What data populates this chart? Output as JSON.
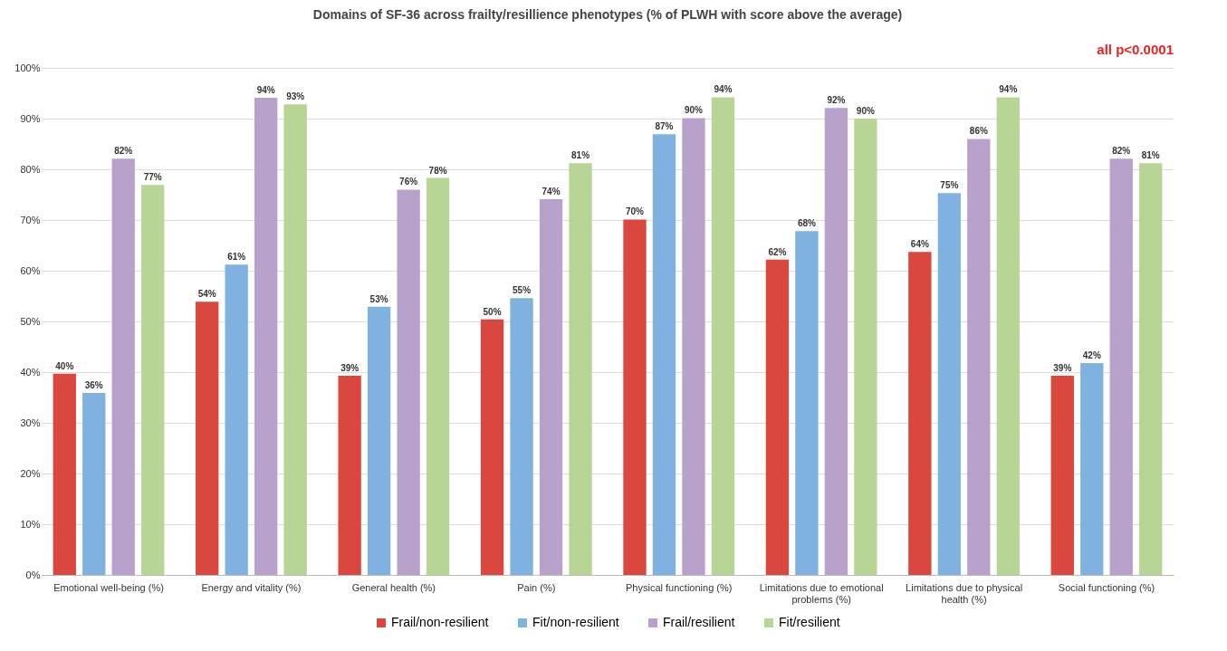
{
  "chart_data": {
    "type": "bar",
    "title": "Domains of SF-36 across frailty/resillience phenotypes (% of PLWH with score above the average)",
    "annotations": [
      "all p<0.0001"
    ],
    "categories": [
      "Emotional well-being (%)",
      "Energy and vitality (%)",
      "General health (%)",
      "Pain (%)",
      "Physical functioning (%)",
      "Limitations due to emotional problems (%)",
      "Limitations due to physical health (%)",
      "Social functioning (%)"
    ],
    "series": [
      {
        "name": "Frail/non-resilient",
        "color": "#d9473f",
        "values": [
          39.7,
          53.9,
          39.3,
          50.4,
          70.1,
          62.2,
          63.7,
          39.3
        ],
        "value_labels": [
          "40%",
          "54%",
          "39%",
          "50%",
          "70%",
          "62%",
          "64%",
          "39%"
        ]
      },
      {
        "name": "Fit/non-resilient",
        "color": "#7fb2e0",
        "values": [
          35.9,
          61.2,
          52.9,
          54.6,
          86.9,
          67.8,
          75.3,
          41.8
        ],
        "value_labels": [
          "36%",
          "61%",
          "53%",
          "55%",
          "87%",
          "68%",
          "75%",
          "42%"
        ]
      },
      {
        "name": "Frail/resilient",
        "color": "#b8a2cb",
        "values": [
          82.1,
          94.1,
          76.0,
          74.1,
          90.1,
          92.1,
          86.0,
          82.1
        ],
        "value_labels": [
          "82%",
          "94%",
          "76%",
          "74%",
          "90%",
          "92%",
          "86%",
          "82%"
        ]
      },
      {
        "name": "Fit/resilient",
        "color": "#b9d596",
        "values": [
          76.9,
          92.8,
          78.3,
          81.2,
          94.2,
          90.0,
          94.2,
          81.2
        ],
        "value_labels": [
          "77%",
          "93%",
          "78%",
          "81%",
          "94%",
          "90%",
          "94%",
          "81%"
        ]
      }
    ],
    "ylim": [
      0,
      100
    ],
    "yticks": [
      {
        "value": 0,
        "label": "0%"
      },
      {
        "value": 10,
        "label": "10%"
      },
      {
        "value": 20,
        "label": "20%"
      },
      {
        "value": 30,
        "label": "30%"
      },
      {
        "value": 40,
        "label": "40%"
      },
      {
        "value": 50,
        "label": "50%"
      },
      {
        "value": 60,
        "label": "60%"
      },
      {
        "value": 70,
        "label": "70%"
      },
      {
        "value": 80,
        "label": "80%"
      },
      {
        "value": 90,
        "label": "90%"
      },
      {
        "value": 100,
        "label": "100%"
      }
    ],
    "grid": "y",
    "legend": "bottom"
  }
}
